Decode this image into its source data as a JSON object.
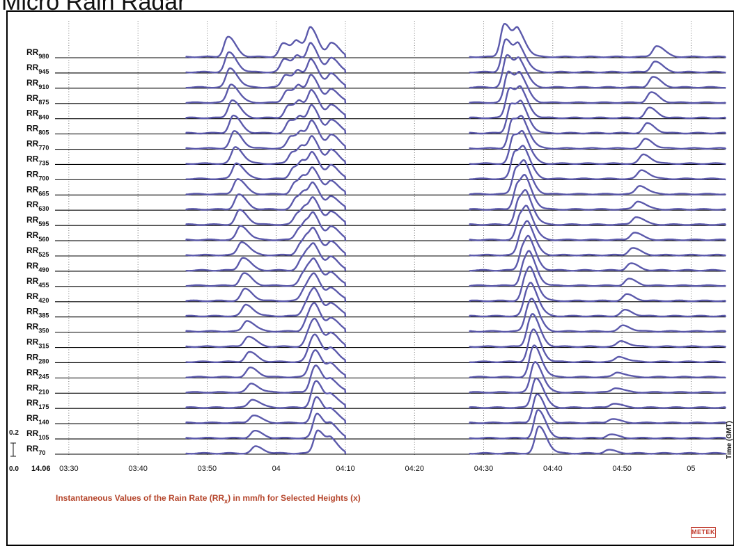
{
  "header": {
    "title": "Micro Rain Radar"
  },
  "chart_data": {
    "type": "line",
    "title": "",
    "caption_prefix": "Instantaneous Values of the Rain Rate (RR",
    "caption_sub": "x",
    "caption_suffix": ") in mm/h for Selected Heights (x)",
    "xlabel": "Time (GMT)",
    "ylabel": "",
    "date_label": "14.06",
    "x_ticks": [
      "03:30",
      "03:40",
      "03:50",
      "04",
      "04:10",
      "04:20",
      "04:30",
      "04:40",
      "04:50",
      "05"
    ],
    "x_range_minutes_gmt": [
      "03:28",
      "05:05"
    ],
    "scale_bar": {
      "top_label": "0.2",
      "bottom_label": "0.0",
      "unit": "mm/h"
    },
    "row_label_prefix": "RR",
    "heights": [
      980,
      945,
      910,
      875,
      840,
      805,
      770,
      735,
      700,
      665,
      630,
      595,
      560,
      525,
      490,
      455,
      420,
      385,
      350,
      315,
      280,
      245,
      210,
      175,
      140,
      105,
      70
    ],
    "data_segments": [
      [
        "03:47",
        "04:10"
      ],
      [
        "04:28",
        "05:05"
      ]
    ],
    "series_color": "#5b59ab",
    "peaks_at_top_height_980": [
      {
        "time": "03:53",
        "value": 0.18
      },
      {
        "time": "04:01",
        "value": 0.12
      },
      {
        "time": "04:03",
        "value": 0.13
      },
      {
        "time": "04:05",
        "value": 0.24
      },
      {
        "time": "04:08",
        "value": 0.12
      },
      {
        "time": "04:33",
        "value": 0.3
      },
      {
        "time": "04:35",
        "value": 0.2
      },
      {
        "time": "04:55",
        "value": 0.1
      }
    ],
    "peaks_at_bottom_height_70": [
      {
        "time": "03:57",
        "value": 0.06
      },
      {
        "time": "04:06",
        "value": 0.07
      },
      {
        "time": "04:08",
        "value": 0.1
      },
      {
        "time": "04:38",
        "value": 0.12
      },
      {
        "time": "04:48",
        "value": 0.03
      }
    ],
    "grid": true
  },
  "logo": {
    "text": "METEK"
  }
}
